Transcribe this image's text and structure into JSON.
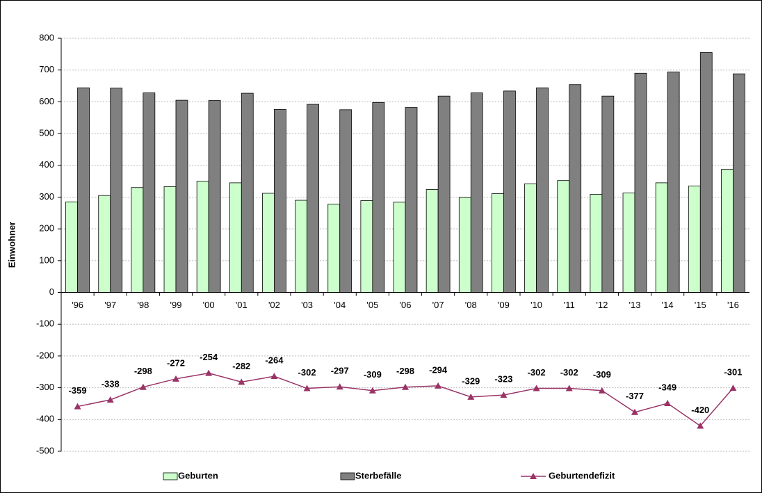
{
  "chart_data": {
    "type": "bar",
    "y_label": "Einwohner",
    "categories": [
      "'96",
      "'97",
      "'98",
      "'99",
      "'00",
      "'01",
      "'02",
      "'03",
      "'04",
      "'05",
      "'06",
      "'07",
      "'08",
      "'09",
      "'10",
      "'11",
      "'12",
      "'13",
      "'14",
      "'15",
      "'16"
    ],
    "series": [
      {
        "name": "Geburten",
        "type": "bar",
        "color": "#ccffcc",
        "values": [
          285,
          305,
          330,
          333,
          350,
          345,
          312,
          290,
          278,
          289,
          284,
          324,
          299,
          311,
          342,
          352,
          309,
          313,
          345,
          335,
          387
        ]
      },
      {
        "name": "Sterbefälle",
        "type": "bar",
        "color": "#808080",
        "values": [
          644,
          643,
          628,
          605,
          604,
          627,
          576,
          592,
          575,
          598,
          582,
          618,
          628,
          634,
          644,
          654,
          618,
          690,
          694,
          755,
          688
        ]
      },
      {
        "name": "Geburtendefizit",
        "type": "line",
        "color": "#993366",
        "values": [
          -359,
          -338,
          -298,
          -272,
          -254,
          -282,
          -264,
          -302,
          -297,
          -309,
          -298,
          -294,
          -329,
          -323,
          -302,
          -302,
          -309,
          -377,
          -349,
          -420,
          -301
        ]
      }
    ],
    "ylim": [
      -500,
      800
    ],
    "yticks": [
      -500,
      -400,
      -300,
      -200,
      -100,
      0,
      100,
      200,
      300,
      400,
      500,
      600,
      700,
      800
    ],
    "grid": true
  }
}
